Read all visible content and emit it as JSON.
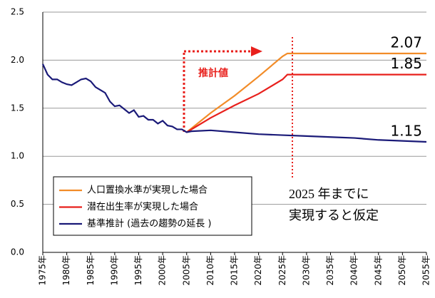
{
  "chart_data": {
    "type": "line",
    "xlim": [
      1975,
      2055
    ],
    "xticks": [
      {
        "value": 1975,
        "label": "1975年"
      },
      {
        "value": 1980,
        "label": "1980年"
      },
      {
        "value": 1985,
        "label": "1985年"
      },
      {
        "value": 1990,
        "label": "1990年"
      },
      {
        "value": 1995,
        "label": "1995年"
      },
      {
        "value": 2000,
        "label": "2000年"
      },
      {
        "value": 2005,
        "label": "2005年"
      },
      {
        "value": 2010,
        "label": "2010年"
      },
      {
        "value": 2015,
        "label": "2015年"
      },
      {
        "value": 2020,
        "label": "2020年"
      },
      {
        "value": 2025,
        "label": "2025年"
      },
      {
        "value": 2030,
        "label": "2030年"
      },
      {
        "value": 2035,
        "label": "2035年"
      },
      {
        "value": 2040,
        "label": "2040年"
      },
      {
        "value": 2045,
        "label": "2045年"
      },
      {
        "value": 2050,
        "label": "2050年"
      },
      {
        "value": 2055,
        "label": "2055年"
      }
    ],
    "ylim": [
      0,
      2.5
    ],
    "yticks": [
      {
        "value": 0,
        "label": "0.0"
      },
      0.5,
      {
        "value": 1,
        "label": "1.0"
      },
      1.5,
      {
        "value": 2,
        "label": "2.0"
      },
      2.5
    ],
    "grid": true,
    "series": [
      {
        "name": "人口置換水準が実現した場合",
        "color": "#f28c28",
        "x": [
          2005,
          2010,
          2015,
          2020,
          2025,
          2026,
          2030,
          2055
        ],
        "values": [
          1.25,
          1.45,
          1.63,
          1.83,
          2.04,
          2.07,
          2.07,
          2.07
        ]
      },
      {
        "name": "潜在出生率が実現した場合",
        "color": "#e8201c",
        "x": [
          2005,
          2010,
          2015,
          2020,
          2025,
          2026,
          2030,
          2055
        ],
        "values": [
          1.25,
          1.4,
          1.53,
          1.65,
          1.8,
          1.85,
          1.85,
          1.85
        ]
      },
      {
        "name": "基準推計 (過去の趨勢の延長 )",
        "color": "#1a1a78",
        "x": [
          1975,
          1976,
          1977,
          1978,
          1979,
          1980,
          1981,
          1982,
          1983,
          1984,
          1985,
          1986,
          1987,
          1988,
          1989,
          1990,
          1991,
          1992,
          1993,
          1994,
          1995,
          1996,
          1997,
          1998,
          1999,
          2000,
          2001,
          2002,
          2003,
          2004,
          2005,
          2006,
          2010,
          2015,
          2020,
          2025,
          2030,
          2035,
          2040,
          2045,
          2050,
          2055
        ],
        "values": [
          1.96,
          1.85,
          1.8,
          1.8,
          1.77,
          1.75,
          1.74,
          1.77,
          1.8,
          1.81,
          1.78,
          1.72,
          1.69,
          1.66,
          1.57,
          1.52,
          1.53,
          1.49,
          1.45,
          1.48,
          1.41,
          1.42,
          1.38,
          1.38,
          1.34,
          1.37,
          1.32,
          1.31,
          1.28,
          1.28,
          1.25,
          1.26,
          1.27,
          1.25,
          1.23,
          1.22,
          1.21,
          1.2,
          1.19,
          1.17,
          1.16,
          1.15
        ]
      }
    ],
    "annotations": [
      "推計値",
      "2025 年までに",
      "実現すると仮定"
    ]
  }
}
